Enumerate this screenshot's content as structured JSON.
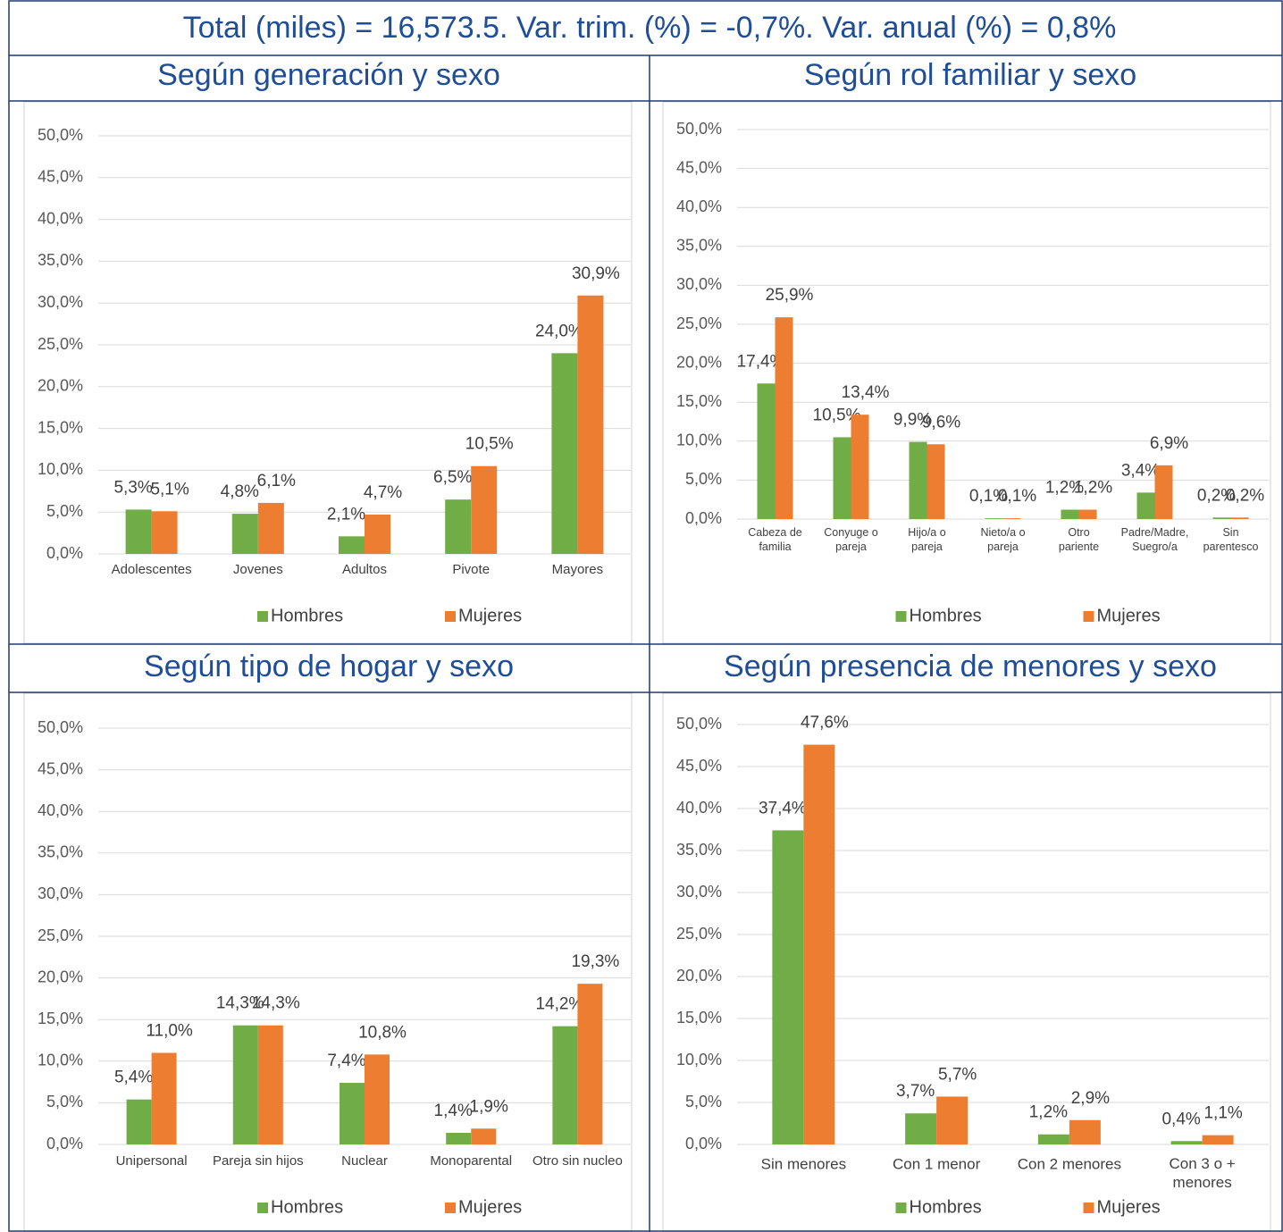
{
  "title": "Total (miles) = 16,573.5.  Var. trim. (%) = -0,7%. Var. anual (%) = 0,8%",
  "chart_data": [
    {
      "type": "bar",
      "title": "Según generación y sexo",
      "categories": [
        "Adolescentes",
        "Jovenes",
        "Adultos",
        "Pivote",
        "Mayores"
      ],
      "series": [
        {
          "name": "Hombres",
          "color": "#70ad47",
          "values": [
            5.3,
            4.8,
            2.1,
            6.5,
            24.0
          ],
          "value_labels": [
            "5,3%",
            "4,8%",
            "2,1%",
            "6,5%",
            "24,0%"
          ]
        },
        {
          "name": "Mujeres",
          "color": "#ed7d31",
          "values": [
            5.1,
            6.1,
            4.7,
            10.5,
            30.9
          ],
          "value_labels": [
            "5,1%",
            "6,1%",
            "4,7%",
            "10,5%",
            "30,9%"
          ]
        }
      ],
      "ylim": [
        0,
        50
      ],
      "yticks": [
        {
          "value": 0,
          "label": "0,0%"
        },
        {
          "value": 5,
          "label": "5,0%"
        },
        {
          "value": 10,
          "label": "10,0%"
        },
        {
          "value": 15,
          "label": "15,0%"
        },
        {
          "value": 20,
          "label": "20,0%"
        },
        {
          "value": 25,
          "label": "25,0%"
        },
        {
          "value": 30,
          "label": "30,0%"
        },
        {
          "value": 35,
          "label": "35,0%"
        },
        {
          "value": 40,
          "label": "40,0%"
        },
        {
          "value": 45,
          "label": "45,0%"
        },
        {
          "value": 50,
          "label": "50,0%"
        }
      ],
      "grid": true,
      "legend": "bottom"
    },
    {
      "type": "bar",
      "title": "Según rol familiar y sexo",
      "categories": [
        "Cabeza de familia",
        "Conyuge o pareja",
        "Hijo/a o pareja",
        "Nieto/a o pareja",
        "Otro pariente",
        "Padre/Madre, Suegro/a",
        "Sin parentesco"
      ],
      "series": [
        {
          "name": "Hombres",
          "color": "#70ad47",
          "values": [
            17.4,
            10.5,
            9.9,
            0.1,
            1.2,
            3.4,
            0.2
          ],
          "value_labels": [
            "17,4%",
            "10,5%",
            "9,9%",
            "0,1%",
            "1,2%",
            "3,4%",
            "0,2%"
          ]
        },
        {
          "name": "Mujeres",
          "color": "#ed7d31",
          "values": [
            25.9,
            13.4,
            9.6,
            0.1,
            1.2,
            6.9,
            0.2
          ],
          "value_labels": [
            "25,9%",
            "13,4%",
            "9,6%",
            "0,1%",
            "1,2%",
            "6,9%",
            "0,2%"
          ]
        }
      ],
      "ylim": [
        0,
        50
      ],
      "yticks": [
        {
          "value": 0,
          "label": "0,0%"
        },
        {
          "value": 5,
          "label": "5,0%"
        },
        {
          "value": 10,
          "label": "10,0%"
        },
        {
          "value": 15,
          "label": "15,0%"
        },
        {
          "value": 20,
          "label": "20,0%"
        },
        {
          "value": 25,
          "label": "25,0%"
        },
        {
          "value": 30,
          "label": "30,0%"
        },
        {
          "value": 35,
          "label": "35,0%"
        },
        {
          "value": 40,
          "label": "40,0%"
        },
        {
          "value": 45,
          "label": "45,0%"
        },
        {
          "value": 50,
          "label": "50,0%"
        }
      ],
      "grid": true,
      "legend": "bottom"
    },
    {
      "type": "bar",
      "title": "Según tipo de hogar y sexo",
      "categories": [
        "Unipersonal",
        "Pareja sin hijos",
        "Nuclear",
        "Monoparental",
        "Otro sin nucleo"
      ],
      "series": [
        {
          "name": "Hombres",
          "color": "#70ad47",
          "values": [
            5.4,
            14.3,
            7.4,
            1.4,
            14.2
          ],
          "value_labels": [
            "5,4%",
            "14,3%",
            "7,4%",
            "1,4%",
            "14,2%"
          ]
        },
        {
          "name": "Mujeres",
          "color": "#ed7d31",
          "values": [
            11.0,
            14.3,
            10.8,
            1.9,
            19.3
          ],
          "value_labels": [
            "11,0%",
            "14,3%",
            "10,8%",
            "1,9%",
            "19,3%"
          ]
        }
      ],
      "ylim": [
        0,
        50
      ],
      "yticks": [
        {
          "value": 0,
          "label": "0,0%"
        },
        {
          "value": 5,
          "label": "5,0%"
        },
        {
          "value": 10,
          "label": "10,0%"
        },
        {
          "value": 15,
          "label": "15,0%"
        },
        {
          "value": 20,
          "label": "20,0%"
        },
        {
          "value": 25,
          "label": "25,0%"
        },
        {
          "value": 30,
          "label": "30,0%"
        },
        {
          "value": 35,
          "label": "35,0%"
        },
        {
          "value": 40,
          "label": "40,0%"
        },
        {
          "value": 45,
          "label": "45,0%"
        },
        {
          "value": 50,
          "label": "50,0%"
        }
      ],
      "grid": true,
      "legend": "bottom"
    },
    {
      "type": "bar",
      "title": "Según presencia de menores y sexo",
      "categories": [
        "Sin menores",
        "Con 1 menor",
        "Con 2 menores",
        "Con 3 o + menores"
      ],
      "series": [
        {
          "name": "Hombres",
          "color": "#70ad47",
          "values": [
            37.4,
            3.7,
            1.2,
            0.4
          ],
          "value_labels": [
            "37,4%",
            "3,7%",
            "1,2%",
            "0,4%"
          ]
        },
        {
          "name": "Mujeres",
          "color": "#ed7d31",
          "values": [
            47.6,
            5.7,
            2.9,
            1.1
          ],
          "value_labels": [
            "47,6%",
            "5,7%",
            "2,9%",
            "1,1%"
          ]
        }
      ],
      "ylim": [
        0,
        50
      ],
      "yticks": [
        {
          "value": 0,
          "label": "0,0%"
        },
        {
          "value": 5,
          "label": "5,0%"
        },
        {
          "value": 10,
          "label": "10,0%"
        },
        {
          "value": 15,
          "label": "15,0%"
        },
        {
          "value": 20,
          "label": "20,0%"
        },
        {
          "value": 25,
          "label": "25,0%"
        },
        {
          "value": 30,
          "label": "30,0%"
        },
        {
          "value": 35,
          "label": "35,0%"
        },
        {
          "value": 40,
          "label": "40,0%"
        },
        {
          "value": 45,
          "label": "45,0%"
        },
        {
          "value": 50,
          "label": "50,0%"
        }
      ],
      "grid": true,
      "legend": "bottom"
    }
  ]
}
